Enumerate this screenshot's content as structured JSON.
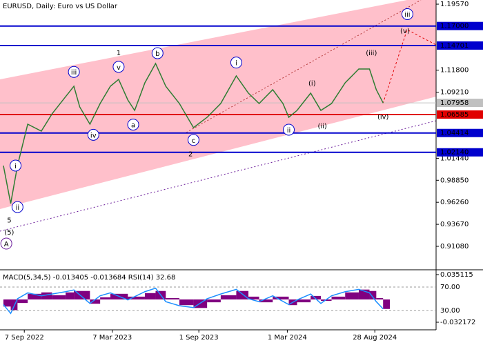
{
  "chart_data": [
    {
      "type": "line",
      "title": "EURUSD, Daily:  Euro vs US Dollar",
      "xlim": [
        -50,
        847
      ],
      "ylim": [
        0.884,
        1.2006
      ],
      "xticks": [
        {
          "value": 0,
          "label": "7 Sep 2022"
        },
        {
          "value": 181,
          "label": "7 Mar 2023"
        },
        {
          "value": 359,
          "label": "1 Sep 2023"
        },
        {
          "value": 541,
          "label": "1 Mar 2024"
        },
        {
          "value": 721,
          "label": "28 Aug 2024"
        }
      ],
      "yticks": [
        {
          "value": 1.1957,
          "label": "1.19570"
        },
        {
          "value": 1.118,
          "label": "1.11800"
        },
        {
          "value": 1.0921,
          "label": "1.09210"
        },
        {
          "value": 1.0144,
          "label": "1.01440"
        },
        {
          "value": 0.9885,
          "label": "0.98850"
        },
        {
          "value": 0.9626,
          "label": "0.96260"
        },
        {
          "value": 0.9367,
          "label": "0.93670"
        },
        {
          "value": 0.9108,
          "label": "0.91080"
        }
      ],
      "levels": [
        {
          "value": 1.17,
          "label": "1.17000",
          "color": "#0000cd"
        },
        {
          "value": 1.14701,
          "label": "1.14701",
          "color": "#0000cd"
        },
        {
          "value": 1.07958,
          "label": "1.07958",
          "color": "#c0c0c0"
        },
        {
          "value": 1.06585,
          "label": "1.06585",
          "color": "#e00000"
        },
        {
          "value": 1.04414,
          "label": "1.04414",
          "color": "#0000cd"
        },
        {
          "value": 1.0214,
          "label": "1.02140",
          "color": "#0000cd"
        }
      ],
      "series": [
        {
          "color": "#2e7d32",
          "x": [
            -43,
            -28,
            -14,
            7,
            35,
            57,
            85,
            102,
            114,
            135,
            156,
            177,
            194,
            213,
            227,
            248,
            270,
            291,
            319,
            348,
            376,
            404,
            436,
            461,
            483,
            511,
            532,
            544,
            561,
            589,
            610,
            632,
            660,
            688,
            710,
            724,
            738
          ],
          "values": [
            1.0058,
            0.9611,
            1.0058,
            1.0545,
            1.0463,
            1.0666,
            1.0869,
            1.0991,
            1.0748,
            1.0545,
            1.0788,
            1.0991,
            1.1072,
            1.0829,
            1.0707,
            1.1032,
            1.1259,
            1.0991,
            1.0788,
            1.0504,
            1.0626,
            1.0788,
            1.1113,
            1.091,
            1.0788,
            1.0951,
            1.0788,
            1.0626,
            1.0707,
            1.091,
            1.0707,
            1.0788,
            1.1032,
            1.1194,
            1.1194,
            1.0951,
            1.07958
          ]
        }
      ],
      "annotations": [
        {
          "text": "i",
          "x": -18,
          "y": 1.0058,
          "color": "#0000cd",
          "circle": true
        },
        {
          "text": "ii",
          "x": -14,
          "y": 0.957,
          "color": "#0000cd",
          "circle": true
        },
        {
          "text": "iii",
          "x": 102,
          "y": 1.116,
          "color": "#0000cd",
          "circle": true
        },
        {
          "text": "iv",
          "x": 142,
          "y": 1.042,
          "color": "#0000cd",
          "circle": true
        },
        {
          "text": "v",
          "x": 194,
          "y": 1.122,
          "color": "#0000cd",
          "circle": true
        },
        {
          "text": "1",
          "x": 194,
          "y": 1.139,
          "color": "#b03030",
          "circle": false
        },
        {
          "text": "a",
          "x": 224,
          "y": 1.054,
          "color": "#0000cd",
          "circle": true
        },
        {
          "text": "b",
          "x": 274,
          "y": 1.138,
          "color": "#0000cd",
          "circle": true
        },
        {
          "text": "c",
          "x": 348,
          "y": 1.036,
          "color": "#0000cd",
          "circle": true
        },
        {
          "text": "2",
          "x": 342,
          "y": 1.02,
          "color": "#b03030",
          "circle": false
        },
        {
          "text": "i",
          "x": 436,
          "y": 1.127,
          "color": "#0000cd",
          "circle": true
        },
        {
          "text": "ii",
          "x": 544,
          "y": 1.048,
          "color": "#0000cd",
          "circle": true
        },
        {
          "text": "(i)",
          "x": 592,
          "y": 1.103,
          "color": "#e00000",
          "circle": false
        },
        {
          "text": "(ii)",
          "x": 613,
          "y": 1.053,
          "color": "#e00000",
          "circle": false
        },
        {
          "text": "(iii)",
          "x": 714,
          "y": 1.139,
          "color": "#e00000",
          "circle": false
        },
        {
          "text": "(iv)",
          "x": 738,
          "y": 1.064,
          "color": "#e00000",
          "circle": false
        },
        {
          "text": "(v)",
          "x": 783,
          "y": 1.165,
          "color": "#e00000",
          "circle": false
        },
        {
          "text": "iii",
          "x": 788,
          "y": 1.184,
          "color": "#0000cd",
          "circle": true
        },
        {
          "text": "5",
          "x": -31,
          "y": 0.942,
          "color": "#b03030",
          "circle": false
        },
        {
          "text": "(5)",
          "x": -31,
          "y": 0.928,
          "color": "#2e7d32",
          "circle": false
        },
        {
          "text": "A",
          "x": -37,
          "y": 0.914,
          "color": "#6a1b9a",
          "circle": true
        }
      ]
    },
    {
      "type": "bar",
      "title": "MACD(5,34,5) -0.013405 -0.013684 RSI(14) 32.68",
      "xlim": [
        -50,
        847
      ],
      "ylim": [
        -0.0429,
        0.04
      ],
      "y2lim": [
        -3,
        97
      ],
      "yticks": [
        0.035115,
        -0.032172
      ],
      "y2ticks": [
        {
          "value": 70,
          "label": "70.00"
        },
        {
          "value": 30,
          "label": "30.00"
        }
      ],
      "series": [
        {
          "color": "#800080",
          "x": [
            -43,
            -28,
            -14,
            7,
            35,
            57,
            85,
            102,
            135,
            156,
            177,
            213,
            248,
            270,
            291,
            319,
            348,
            376,
            404,
            436,
            461,
            483,
            511,
            544,
            561,
            589,
            610,
            632,
            660,
            688,
            710,
            724,
            738
          ],
          "values": [
            -0.01,
            -0.015,
            -0.005,
            0.008,
            0.01,
            0.006,
            0.01,
            0.012,
            -0.006,
            0.003,
            0.008,
            0.004,
            0.009,
            0.012,
            0.002,
            -0.008,
            -0.012,
            -0.004,
            0.006,
            0.012,
            0.004,
            -0.004,
            0.004,
            -0.008,
            -0.004,
            0.005,
            -0.002,
            0.004,
            0.01,
            0.014,
            0.012,
            0.002,
            -0.013405
          ]
        },
        {
          "color": "#1e90ff",
          "axis": "y2",
          "x": [
            -43,
            -28,
            -14,
            7,
            35,
            57,
            85,
            102,
            135,
            156,
            177,
            213,
            248,
            270,
            291,
            319,
            348,
            376,
            404,
            436,
            461,
            483,
            511,
            544,
            561,
            589,
            610,
            632,
            660,
            688,
            710,
            724,
            738
          ],
          "values": [
            40,
            25,
            50,
            60,
            55,
            58,
            62,
            65,
            42,
            55,
            60,
            48,
            62,
            68,
            45,
            38,
            35,
            50,
            58,
            66,
            50,
            45,
            55,
            40,
            48,
            58,
            42,
            55,
            62,
            66,
            60,
            45,
            32.68
          ]
        }
      ]
    }
  ]
}
